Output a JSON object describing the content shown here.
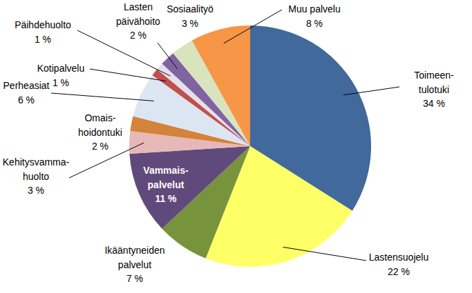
{
  "chart_data": {
    "type": "pie",
    "categories": [
      "Toimeen-\ntulotuki",
      "Lastensuojelu",
      "Ikääntyneiden\npalvelut",
      "Vammais-\npalvelut",
      "Kehitysvamma-\nhuolto",
      "Omais-\nhoidontuki",
      "Perheasiat",
      "Kotipalvelu",
      "Päihdehuolto",
      "Lasten\npäivähoito",
      "Sosiaalityö",
      "Muu palvelu"
    ],
    "values": [
      34,
      22,
      7,
      11,
      3,
      2,
      6,
      1,
      1,
      2,
      3,
      8
    ],
    "value_labels": [
      "34 %",
      "22 %",
      "7 %",
      "11 %",
      "3 %",
      "2 %",
      "6 %",
      "1 %",
      "1 %",
      "2 %",
      "3 %",
      "8 %"
    ],
    "colors": [
      "#41699B",
      "#FFFF66",
      "#77933C",
      "#604A7B",
      "#E6B9B8",
      "#D3833A",
      "#DCE6F2",
      "#C0504D",
      "#E6E0EC",
      "#8064A2",
      "#D7E4BD",
      "#F79646"
    ],
    "data_labels": true
  }
}
